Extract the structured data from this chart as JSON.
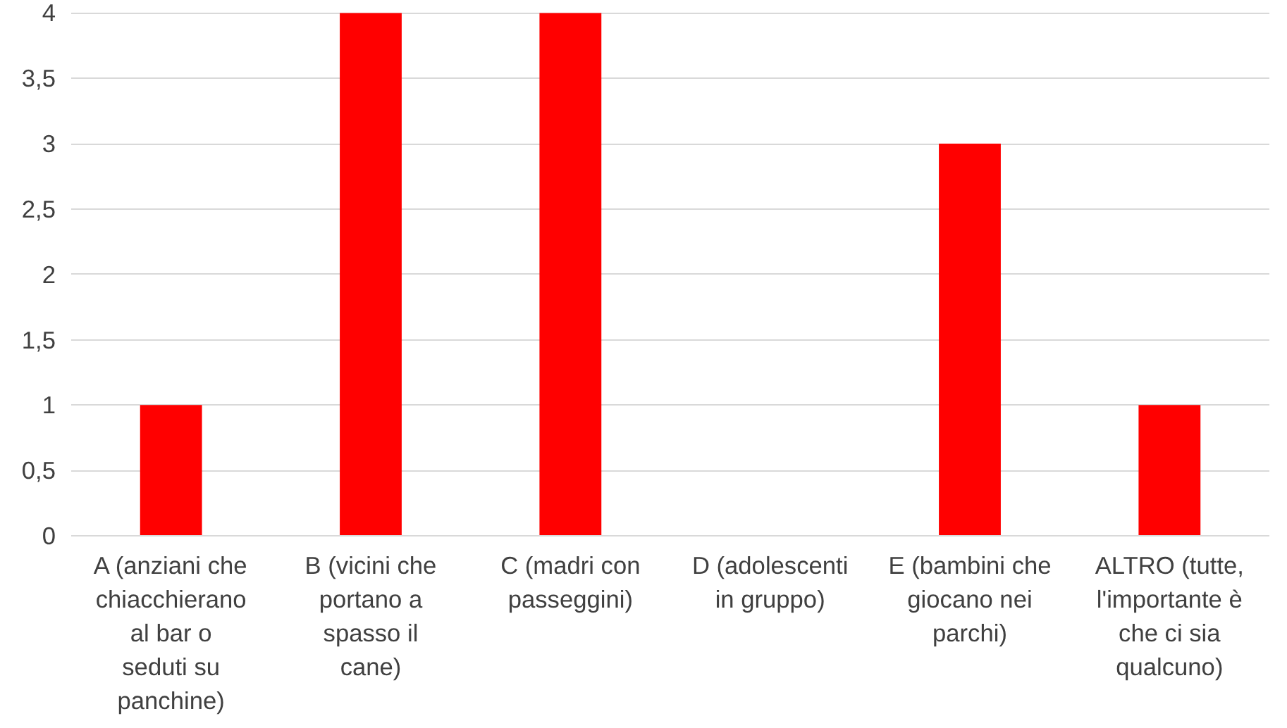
{
  "chart_data": {
    "type": "bar",
    "categories": [
      "A (anziani che chiacchierano al bar o seduti su panchine)",
      "B (vicini che portano a spasso il cane)",
      "C (madri con passeggini)",
      "D (adolescenti in gruppo)",
      "E (bambini che giocano nei parchi)",
      "ALTRO (tutte, l'importante è che ci sia qualcuno)"
    ],
    "values": [
      1,
      4,
      4,
      0,
      3,
      1
    ],
    "color": "#ff0000",
    "ylim": [
      0,
      4
    ],
    "yticks": [
      0,
      {
        "value": 0.5,
        "label": "0,5"
      },
      1,
      {
        "value": 1.5,
        "label": "1,5"
      },
      2,
      {
        "value": 2.5,
        "label": "2,5"
      },
      3,
      {
        "value": 3.5,
        "label": "3,5"
      },
      4
    ],
    "grid": "y"
  }
}
